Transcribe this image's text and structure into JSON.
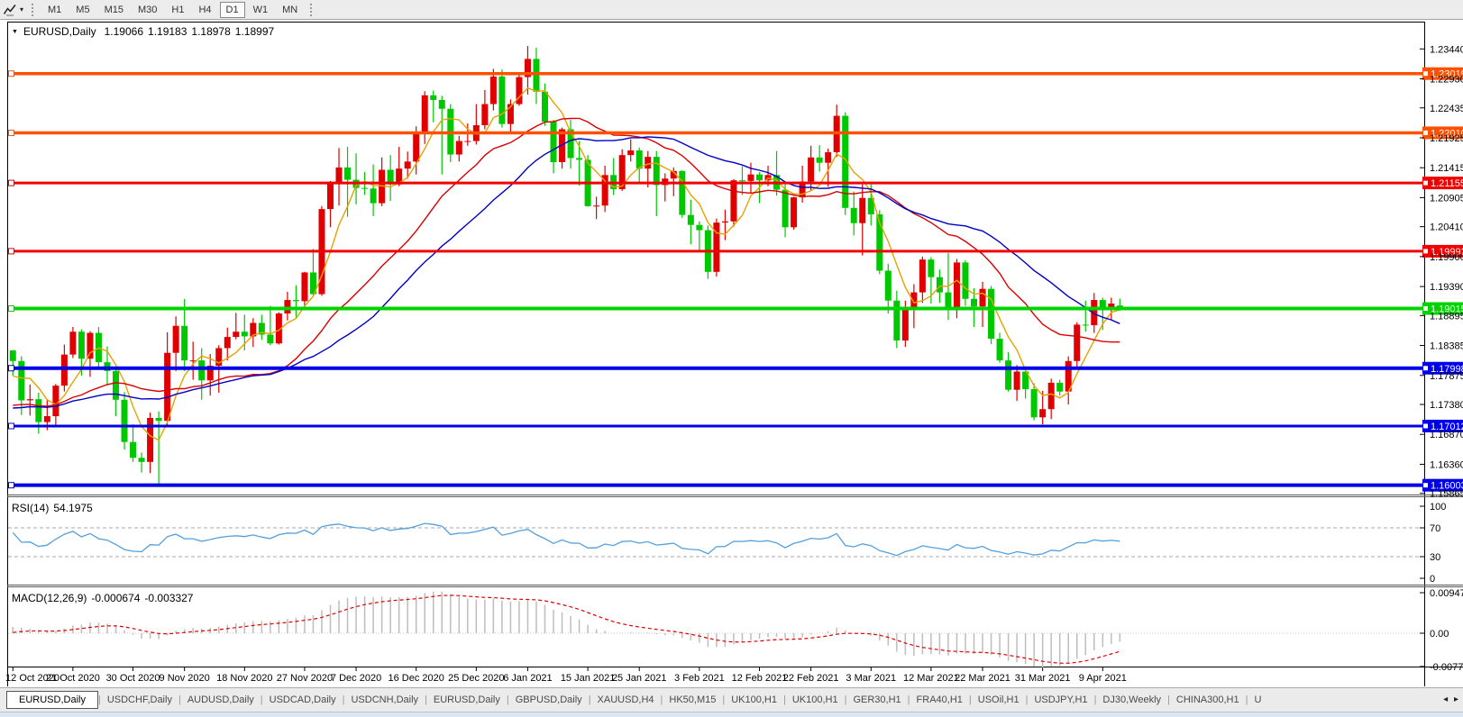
{
  "toolbar": {
    "timeframes": [
      "M1",
      "M5",
      "M15",
      "M30",
      "H1",
      "H4",
      "D1",
      "W1",
      "MN"
    ],
    "active_timeframe": "D1",
    "dropdown_glyph": "▾"
  },
  "chart_header": {
    "menu_glyph": "▼",
    "symbol": "EURUSD,Daily",
    "open": "1.19066",
    "high": "1.19183",
    "low": "1.18978",
    "close": "1.18997"
  },
  "price_scale": [
    "1.23440",
    "1.22930",
    "1.22435",
    "1.21925",
    "1.21415",
    "1.20905",
    "1.20410",
    "1.19900",
    "1.19390",
    "1.18895",
    "1.18385",
    "1.17875",
    "1.17380",
    "1.16870",
    "1.16360",
    "1.15865"
  ],
  "hlines": [
    {
      "price": 1.23019,
      "label": "1.23019",
      "color": "#FF5000",
      "width": 3.5
    },
    {
      "price": 1.2201,
      "label": "1.22010",
      "color": "#FF5000",
      "width": 3.5
    },
    {
      "price": 1.21155,
      "label": "1.21155",
      "color": "#F00000",
      "width": 3
    },
    {
      "price": 1.19992,
      "label": "1.19992",
      "color": "#F00000",
      "width": 3
    },
    {
      "price": 1.19015,
      "label": "1.19015",
      "color": "#00D400",
      "width": 4
    },
    {
      "price": 1.17998,
      "label": "1.17998",
      "color": "#0000E8",
      "width": 4
    },
    {
      "price": 1.17012,
      "label": "1.17012",
      "color": "#0000E8",
      "width": 3
    },
    {
      "price": 1.16003,
      "label": "1.16003",
      "color": "#0000E8",
      "width": 4
    }
  ],
  "rsi_panel": {
    "label": "RSI(14)",
    "value": "54.1975",
    "period": 14,
    "scale": [
      "100",
      "70",
      "30",
      "0"
    ],
    "levels": [
      70,
      30
    ],
    "line_color": "#53A0DC"
  },
  "macd_panel": {
    "label": "MACD(12,26,9)",
    "macd_value": "-0.000674",
    "signal_value": "-0.003327",
    "fast": 12,
    "slow": 26,
    "signal": 9,
    "scale": [
      "0.009478",
      "0.00",
      "-0.007778"
    ],
    "hist_color": "#BDBDBD",
    "signal_color": "#E00000"
  },
  "x_axis": {
    "ticks": [
      {
        "label": "12 Oct 2020",
        "idx": 0
      },
      {
        "label": "21 Oct 2020",
        "idx": 7
      },
      {
        "label": "30 Oct 2020",
        "idx": 14
      },
      {
        "label": "9 Nov 2020",
        "idx": 20
      },
      {
        "label": "18 Nov 2020",
        "idx": 27
      },
      {
        "label": "27 Nov 2020",
        "idx": 34
      },
      {
        "label": "7 Dec 2020",
        "idx": 40
      },
      {
        "label": "16 Dec 2020",
        "idx": 47
      },
      {
        "label": "25 Dec 2020",
        "idx": 54
      },
      {
        "label": "6 Jan 2021",
        "idx": 60
      },
      {
        "label": "15 Jan 2021",
        "idx": 67
      },
      {
        "label": "25 Jan 2021",
        "idx": 73
      },
      {
        "label": "3 Feb 2021",
        "idx": 80
      },
      {
        "label": "12 Feb 2021",
        "idx": 87
      },
      {
        "label": "22 Feb 2021",
        "idx": 93
      },
      {
        "label": "3 Mar 2021",
        "idx": 100
      },
      {
        "label": "12 Mar 2021",
        "idx": 107
      },
      {
        "label": "22 Mar 2021",
        "idx": 113
      },
      {
        "label": "31 Mar 2021",
        "idx": 120
      },
      {
        "label": "9 Apr 2021",
        "idx": 127
      }
    ]
  },
  "tabs": {
    "items": [
      "EURUSD,Daily",
      "USDCHF,Daily",
      "AUDUSD,Daily",
      "USDCAD,Daily",
      "USDCNH,Daily",
      "EURUSD,Daily",
      "GBPUSD,Daily",
      "XAUUSD,H4",
      "HK50,M15",
      "UK100,H1",
      "UK100,H1",
      "GER30,H1",
      "FRA40,H1",
      "USOil,H1",
      "USDJPY,H1",
      "DJ30,Weekly",
      "CHINA300,H1"
    ],
    "active_index": 0,
    "overflow_label": "U",
    "scroll_left_glyph": "◂",
    "scroll_right_glyph": "▸"
  },
  "chart_data": {
    "type": "candlestick+indicators",
    "symbol": "EURUSD",
    "period": "Daily",
    "up_color": "#E00000",
    "down_color": "#00C800",
    "price_axis": {
      "min": 1.1586,
      "max": 1.2389
    },
    "ma_lines": [
      {
        "period": 5,
        "type": "sma",
        "color": "#E8A200"
      },
      {
        "period": 20,
        "type": "sma",
        "color": "#D80000"
      },
      {
        "period": 30,
        "type": "sma",
        "color": "#0000C8"
      }
    ],
    "seed_closes": [
      1.188,
      1.191,
      1.1935,
      1.1908,
      1.1862,
      1.1845,
      1.1871,
      1.189,
      1.1866,
      1.183,
      1.1815,
      1.1843,
      1.1862,
      1.1838,
      1.181,
      1.1788,
      1.1822,
      1.1848,
      1.1826,
      1.18,
      1.1764,
      1.1742,
      1.1718,
      1.1686,
      1.1662,
      1.1636,
      1.1612,
      1.163,
      1.1664,
      1.1688,
      1.1712,
      1.1722,
      1.17,
      1.1716,
      1.174,
      1.1722,
      1.1698,
      1.1714,
      1.1736,
      1.1758,
      1.1716,
      1.1722,
      1.174,
      1.1752,
      1.1738,
      1.172,
      1.1708,
      1.1722,
      1.1736,
      1.1718,
      1.17,
      1.1692,
      1.1684,
      1.1702,
      1.1722,
      1.1744,
      1.1762,
      1.175,
      1.1788,
      1.182
    ],
    "candles": [
      [
        1.183,
        1.1831,
        1.1787,
        1.1812
      ],
      [
        1.1812,
        1.182,
        1.172,
        1.1745
      ],
      [
        1.1745,
        1.1772,
        1.1719,
        1.1747
      ],
      [
        1.1747,
        1.1758,
        1.1688,
        1.1708
      ],
      [
        1.1708,
        1.1747,
        1.1694,
        1.1718
      ],
      [
        1.1718,
        1.1773,
        1.1703,
        1.177
      ],
      [
        1.177,
        1.184,
        1.176,
        1.1823
      ],
      [
        1.1823,
        1.187,
        1.1817,
        1.1862
      ],
      [
        1.1862,
        1.1866,
        1.1787,
        1.1816
      ],
      [
        1.1816,
        1.1863,
        1.1785,
        1.186
      ],
      [
        1.186,
        1.187,
        1.18,
        1.181
      ],
      [
        1.181,
        1.1837,
        1.177,
        1.1795
      ],
      [
        1.1795,
        1.18,
        1.1718,
        1.1746
      ],
      [
        1.1746,
        1.1759,
        1.1661,
        1.1674
      ],
      [
        1.1674,
        1.1704,
        1.164,
        1.1647
      ],
      [
        1.1647,
        1.1656,
        1.1622,
        1.164
      ],
      [
        1.164,
        1.1724,
        1.1621,
        1.1715
      ],
      [
        1.1715,
        1.1726,
        1.1603,
        1.171
      ],
      [
        1.171,
        1.1861,
        1.17,
        1.1826
      ],
      [
        1.1826,
        1.1888,
        1.1795,
        1.1872
      ],
      [
        1.1872,
        1.1918,
        1.1795,
        1.1813
      ],
      [
        1.1813,
        1.1845,
        1.178,
        1.1813
      ],
      [
        1.1813,
        1.1834,
        1.1746,
        1.1779
      ],
      [
        1.1779,
        1.1824,
        1.1753,
        1.1804
      ],
      [
        1.1804,
        1.1839,
        1.1758,
        1.1834
      ],
      [
        1.1834,
        1.1869,
        1.1813,
        1.1853
      ],
      [
        1.1853,
        1.1894,
        1.1849,
        1.1862
      ],
      [
        1.1862,
        1.1891,
        1.183,
        1.1854
      ],
      [
        1.1854,
        1.1885,
        1.1836,
        1.1877
      ],
      [
        1.1877,
        1.1891,
        1.1848,
        1.1857
      ],
      [
        1.1857,
        1.1906,
        1.1839,
        1.1842
      ],
      [
        1.1842,
        1.1895,
        1.184,
        1.1893
      ],
      [
        1.1893,
        1.193,
        1.1881,
        1.1916
      ],
      [
        1.1916,
        1.1941,
        1.1886,
        1.1914
      ],
      [
        1.1914,
        1.1964,
        1.1901,
        1.1963
      ],
      [
        1.1963,
        1.2003,
        1.1923,
        1.1926
      ],
      [
        1.1926,
        1.2076,
        1.1923,
        1.2071
      ],
      [
        1.2071,
        1.2119,
        1.204,
        1.2117
      ],
      [
        1.2117,
        1.2175,
        1.2077,
        1.2142
      ],
      [
        1.2142,
        1.2177,
        1.2058,
        1.2121
      ],
      [
        1.2121,
        1.2166,
        1.2079,
        1.2107
      ],
      [
        1.2107,
        1.2134,
        1.2095,
        1.2106
      ],
      [
        1.2106,
        1.2147,
        1.2059,
        1.2081
      ],
      [
        1.2081,
        1.2159,
        1.2076,
        1.2138
      ],
      [
        1.2138,
        1.2163,
        1.2085,
        1.2113
      ],
      [
        1.2113,
        1.2177,
        1.211,
        1.214
      ],
      [
        1.214,
        1.2169,
        1.2123,
        1.2152
      ],
      [
        1.2152,
        1.2212,
        1.213,
        1.2199
      ],
      [
        1.2199,
        1.2272,
        1.2182,
        1.2265
      ],
      [
        1.2265,
        1.2273,
        1.2219,
        1.2257
      ],
      [
        1.2257,
        1.2264,
        1.213,
        1.2242
      ],
      [
        1.2242,
        1.225,
        1.2151,
        1.2164
      ],
      [
        1.2164,
        1.2196,
        1.2152,
        1.2187
      ],
      [
        1.2187,
        1.2217,
        1.2179,
        1.2187
      ],
      [
        1.2187,
        1.225,
        1.2181,
        1.2214
      ],
      [
        1.2214,
        1.2274,
        1.2207,
        1.225
      ],
      [
        1.225,
        1.231,
        1.2239,
        1.2297
      ],
      [
        1.2297,
        1.2309,
        1.221,
        1.2216
      ],
      [
        1.2216,
        1.2258,
        1.2199,
        1.225
      ],
      [
        1.225,
        1.2303,
        1.2247,
        1.2296
      ],
      [
        1.2296,
        1.2349,
        1.2266,
        1.2327
      ],
      [
        1.2327,
        1.2346,
        1.225,
        1.2271
      ],
      [
        1.2271,
        1.2285,
        1.2213,
        1.222
      ],
      [
        1.222,
        1.2223,
        1.2132,
        1.2151
      ],
      [
        1.2151,
        1.221,
        1.214,
        1.2207
      ],
      [
        1.2207,
        1.2223,
        1.214,
        1.2158
      ],
      [
        1.2158,
        1.2187,
        1.2111,
        1.2155
      ],
      [
        1.2155,
        1.2163,
        1.2075,
        1.2076
      ],
      [
        1.2076,
        1.2092,
        1.2054,
        1.2077
      ],
      [
        1.2077,
        1.2145,
        1.2066,
        1.2129
      ],
      [
        1.2129,
        1.2158,
        1.2095,
        1.2105
      ],
      [
        1.2105,
        1.2173,
        1.2102,
        1.2163
      ],
      [
        1.2163,
        1.219,
        1.2152,
        1.2171
      ],
      [
        1.2171,
        1.2176,
        1.2116,
        1.214
      ],
      [
        1.214,
        1.217,
        1.2108,
        1.216
      ],
      [
        1.216,
        1.217,
        1.2059,
        1.2112
      ],
      [
        1.2112,
        1.2132,
        1.2084,
        1.2123
      ],
      [
        1.2123,
        1.2142,
        1.2093,
        1.2136
      ],
      [
        1.2136,
        1.2137,
        1.2056,
        1.2061
      ],
      [
        1.2061,
        1.2087,
        1.2011,
        1.2044
      ],
      [
        1.2044,
        1.205,
        1.1999,
        1.2035
      ],
      [
        1.2035,
        1.2043,
        1.1952,
        1.1964
      ],
      [
        1.1964,
        1.2055,
        1.1956,
        1.2048
      ],
      [
        1.2048,
        1.207,
        1.2018,
        1.205
      ],
      [
        1.205,
        1.2122,
        1.2041,
        1.212
      ],
      [
        1.212,
        1.2144,
        1.2095,
        1.2119
      ],
      [
        1.2119,
        1.215,
        1.2098,
        1.213
      ],
      [
        1.213,
        1.2134,
        1.2081,
        1.212
      ],
      [
        1.212,
        1.2145,
        1.211,
        1.2129
      ],
      [
        1.2129,
        1.217,
        1.2094,
        1.2104
      ],
      [
        1.2104,
        1.2113,
        1.2023,
        1.204
      ],
      [
        1.204,
        1.2092,
        1.2036,
        1.2091
      ],
      [
        1.2091,
        1.2145,
        1.2082,
        1.2118
      ],
      [
        1.2118,
        1.2179,
        1.2102,
        1.2159
      ],
      [
        1.2159,
        1.218,
        1.2135,
        1.215
      ],
      [
        1.215,
        1.2174,
        1.2109,
        1.2168
      ],
      [
        1.2168,
        1.2249,
        1.216,
        1.223
      ],
      [
        1.223,
        1.2236,
        1.2061,
        1.2073
      ],
      [
        1.2073,
        1.2101,
        1.2026,
        1.2047
      ],
      [
        1.2047,
        1.2113,
        1.1992,
        1.209
      ],
      [
        1.209,
        1.2113,
        1.2043,
        1.2062
      ],
      [
        1.2062,
        1.2069,
        1.196,
        1.1966
      ],
      [
        1.1966,
        1.1978,
        1.1893,
        1.1915
      ],
      [
        1.1915,
        1.1932,
        1.1834,
        1.1847
      ],
      [
        1.1847,
        1.1915,
        1.1836,
        1.1899
      ],
      [
        1.1899,
        1.1943,
        1.1868,
        1.1929
      ],
      [
        1.1929,
        1.199,
        1.1911,
        1.1985
      ],
      [
        1.1985,
        1.1989,
        1.191,
        1.1955
      ],
      [
        1.1955,
        1.1968,
        1.1911,
        1.1929
      ],
      [
        1.1929,
        1.1996,
        1.1882,
        1.1899
      ],
      [
        1.1899,
        1.1986,
        1.1885,
        1.198
      ],
      [
        1.198,
        1.1984,
        1.1906,
        1.1918
      ],
      [
        1.1918,
        1.1936,
        1.187,
        1.1905
      ],
      [
        1.1905,
        1.1947,
        1.187,
        1.1935
      ],
      [
        1.1935,
        1.194,
        1.1841,
        1.185
      ],
      [
        1.185,
        1.186,
        1.1809,
        1.1813
      ],
      [
        1.1813,
        1.1827,
        1.176,
        1.1763
      ],
      [
        1.1763,
        1.1805,
        1.1744,
        1.1794
      ],
      [
        1.1794,
        1.1795,
        1.1748,
        1.1764
      ],
      [
        1.1764,
        1.1774,
        1.1711,
        1.1716
      ],
      [
        1.1716,
        1.1761,
        1.1704,
        1.173
      ],
      [
        1.173,
        1.1782,
        1.1713,
        1.1775
      ],
      [
        1.1775,
        1.178,
        1.1753,
        1.176
      ],
      [
        1.176,
        1.182,
        1.1738,
        1.1812
      ],
      [
        1.1812,
        1.1878,
        1.1797,
        1.1874
      ],
      [
        1.1874,
        1.1915,
        1.1862,
        1.1873
      ],
      [
        1.1873,
        1.1928,
        1.186,
        1.1916
      ],
      [
        1.1916,
        1.192,
        1.1865,
        1.19
      ],
      [
        1.19,
        1.192,
        1.1882,
        1.191
      ],
      [
        1.19066,
        1.19183,
        1.18978,
        1.18997
      ]
    ]
  }
}
